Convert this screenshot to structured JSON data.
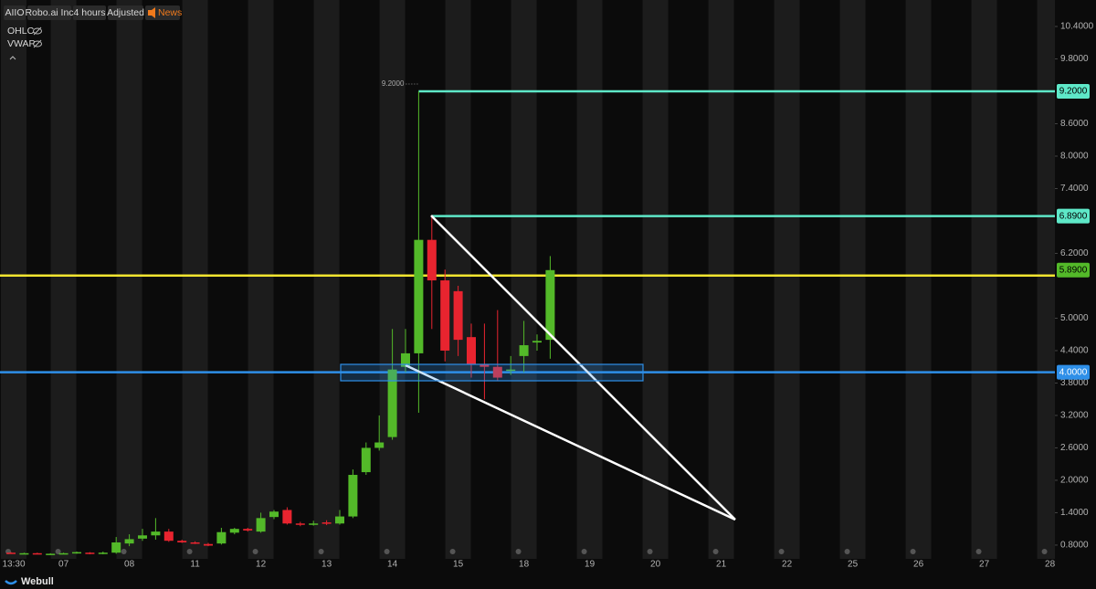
{
  "chart_data": {
    "type": "candlestick",
    "symbol": "AIIO",
    "name": "Robo.ai Inc",
    "interval": "4 hours",
    "adjustment": "Adjusted",
    "news": "News",
    "legend_items": [
      "OHLC",
      "VWAP"
    ],
    "footer": "Webull",
    "up_color": "#53b929",
    "down_color": "#e8242f",
    "categories": [
      "13:30",
      null,
      null,
      null,
      "07",
      null,
      null,
      null,
      null,
      "08",
      null,
      null,
      null,
      null,
      "11",
      null,
      null,
      null,
      null,
      "12",
      null,
      null,
      null,
      null,
      "13",
      null,
      null,
      null,
      null,
      "14",
      null,
      null,
      null,
      null,
      "15",
      null,
      null,
      null,
      null,
      "18",
      null,
      null,
      null,
      null,
      "19",
      null,
      null,
      null,
      null,
      "20",
      null,
      null,
      null,
      null,
      "21",
      null,
      null,
      null,
      null,
      "22",
      null,
      null,
      null,
      null,
      "25",
      null,
      null,
      null,
      null,
      "26",
      null,
      null,
      null,
      null,
      "27",
      null,
      null,
      null,
      null,
      "28"
    ],
    "open": [
      0.66,
      0.65,
      0.65,
      0.64,
      0.64,
      0.65,
      0.66,
      0.64,
      0.66,
      0.83,
      0.92,
      0.98,
      1.05,
      0.88,
      0.85,
      0.82,
      0.83,
      1.03,
      1.1,
      1.05,
      1.32,
      1.45,
      1.2,
      1.18,
      1.22,
      1.2,
      1.33,
      2.15,
      2.6,
      2.8,
      4.1,
      4.35,
      6.45,
      5.7,
      5.5,
      4.65,
      4.15,
      4.1,
      4.05,
      4.3,
      4.55,
      4.6,
      null,
      null,
      null,
      null,
      null,
      null,
      null,
      null,
      null,
      null,
      null,
      null,
      null,
      null,
      null,
      null,
      null,
      null,
      null,
      null,
      null,
      null,
      null,
      null,
      null,
      null,
      null,
      null,
      null,
      null,
      null,
      null,
      null,
      null,
      null,
      null,
      null,
      null
    ],
    "high": [
      0.67,
      0.66,
      0.66,
      0.65,
      0.66,
      0.68,
      0.67,
      0.68,
      0.95,
      1.0,
      1.1,
      1.3,
      1.1,
      0.9,
      0.87,
      0.84,
      1.12,
      1.12,
      1.12,
      1.4,
      1.45,
      1.5,
      1.23,
      1.25,
      1.26,
      1.45,
      2.2,
      2.7,
      3.2,
      4.8,
      4.8,
      9.2,
      6.89,
      5.9,
      5.6,
      4.9,
      4.9,
      5.15,
      4.3,
      4.95,
      4.7,
      6.15,
      null,
      null,
      null,
      null,
      null,
      null,
      null,
      null,
      null,
      null,
      null,
      null,
      null,
      null,
      null,
      null,
      null,
      null,
      null,
      null,
      null,
      null,
      null,
      null,
      null,
      null,
      null,
      null,
      null,
      null,
      null,
      null,
      null,
      null,
      null,
      null,
      null,
      null
    ],
    "low": [
      0.64,
      0.64,
      0.63,
      0.63,
      0.63,
      0.64,
      0.63,
      0.63,
      0.64,
      0.78,
      0.88,
      0.9,
      0.86,
      0.84,
      0.82,
      0.78,
      0.81,
      1.0,
      1.05,
      1.03,
      1.28,
      1.18,
      1.15,
      1.16,
      1.17,
      1.18,
      1.3,
      2.1,
      2.55,
      2.75,
      4.0,
      3.25,
      4.8,
      4.2,
      4.3,
      3.9,
      3.5,
      3.85,
      3.95,
      4.0,
      4.4,
      4.25,
      null,
      null,
      null,
      null,
      null,
      null,
      null,
      null,
      null,
      null,
      null,
      null,
      null,
      null,
      null,
      null,
      null,
      null,
      null,
      null,
      null,
      null,
      null,
      null,
      null,
      null,
      null,
      null,
      null,
      null,
      null,
      null,
      null,
      null,
      null,
      null,
      null,
      null
    ],
    "close": [
      0.65,
      0.65,
      0.64,
      0.64,
      0.65,
      0.67,
      0.64,
      0.66,
      0.85,
      0.91,
      0.98,
      1.05,
      0.88,
      0.85,
      0.83,
      0.79,
      1.04,
      1.1,
      1.07,
      1.3,
      1.42,
      1.2,
      1.18,
      1.2,
      1.2,
      1.33,
      2.1,
      2.6,
      2.7,
      4.05,
      4.35,
      6.45,
      5.7,
      4.4,
      4.6,
      4.15,
      4.1,
      3.9,
      4.05,
      4.5,
      4.58,
      5.89,
      null,
      null,
      null,
      null,
      null,
      null,
      null,
      null,
      null,
      null,
      null,
      null,
      null,
      null,
      null,
      null,
      null,
      null,
      null,
      null,
      null,
      null,
      null,
      null,
      null,
      null,
      null,
      null,
      null,
      null,
      null,
      null,
      null,
      null,
      null,
      null,
      null,
      null
    ],
    "ylim": [
      0.41,
      10.89
    ],
    "yticks": [
      {
        "value": 0.8,
        "label": "0.8000"
      },
      {
        "value": 1.4,
        "label": "1.4000"
      },
      {
        "value": 2.0,
        "label": "2.0000"
      },
      {
        "value": 2.6,
        "label": "2.6000"
      },
      {
        "value": 3.2,
        "label": "3.2000"
      },
      {
        "value": 3.8,
        "label": "3.8000"
      },
      {
        "value": 4.4,
        "label": "4.4000"
      },
      {
        "value": 5.0,
        "label": "5.0000"
      },
      {
        "value": 6.2,
        "label": "6.2000"
      },
      {
        "value": 7.4,
        "label": "7.4000"
      },
      {
        "value": 8.0,
        "label": "8.0000"
      },
      {
        "value": 8.6,
        "label": "8.6000"
      },
      {
        "value": 9.8,
        "label": "9.8000"
      },
      {
        "value": 10.4,
        "label": "10.4000"
      }
    ],
    "hlines": [
      {
        "value": 9.2,
        "label": "9.2000",
        "color": "#5ee8c8"
      },
      {
        "value": 6.89,
        "label": "6.8900",
        "color": "#5ee8c8"
      },
      {
        "value": 5.79,
        "color": "#f2e530"
      },
      {
        "value": 4.0,
        "label": "4.0000",
        "color": "#2e8fe8"
      }
    ],
    "price_tags": [
      {
        "value": 5.89,
        "label": "5.8900",
        "color": "#53b929"
      }
    ],
    "grid": false
  }
}
